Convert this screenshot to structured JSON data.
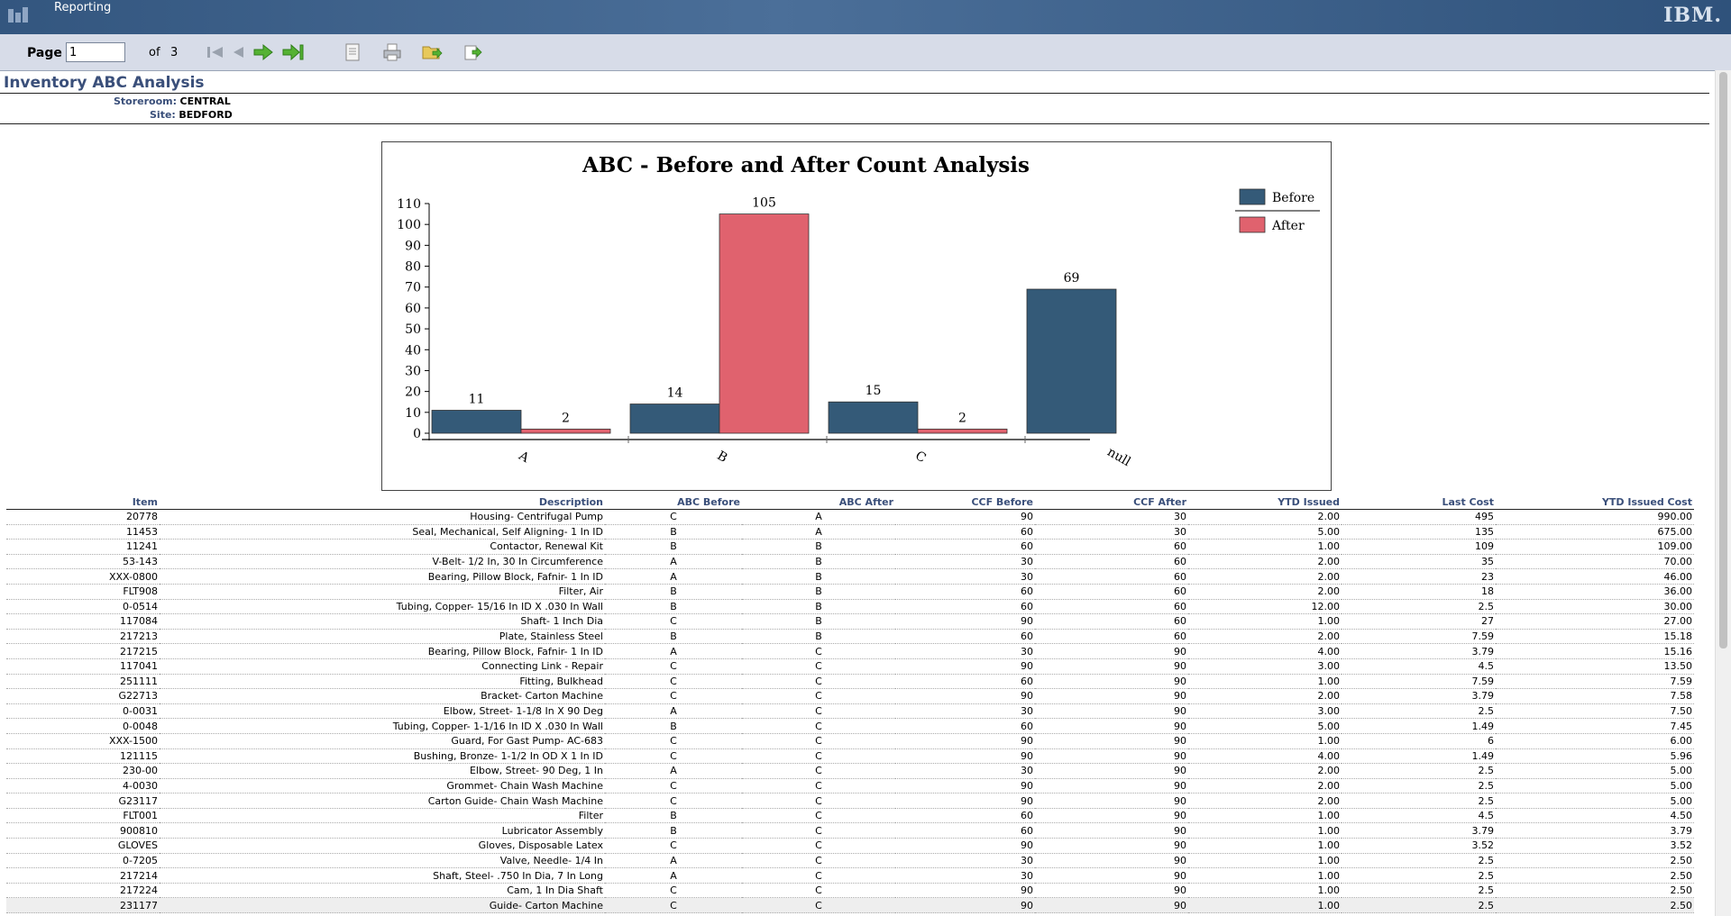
{
  "app": {
    "title": "Reporting",
    "logo": "IBM."
  },
  "toolbar": {
    "page_label": "Page",
    "page_value": "1",
    "of_label": "of",
    "total_pages": "3",
    "icons": [
      "first-page-icon",
      "previous-page-icon",
      "next-page-icon",
      "last-page-icon",
      "view-document-icon",
      "print-icon",
      "export-icon",
      "download-icon"
    ]
  },
  "report": {
    "title": "Inventory ABC Analysis",
    "storeroom_label": "Storeroom:",
    "storeroom_value": "CENTRAL",
    "site_label": "Site:",
    "site_value": "BEDFORD"
  },
  "chart_data": {
    "type": "bar",
    "title": "ABC - Before and After Count Analysis",
    "categories": [
      "A",
      "B",
      "C",
      "null"
    ],
    "series": [
      {
        "name": "Before",
        "values": [
          11,
          14,
          15,
          69
        ],
        "color": "#345a78"
      },
      {
        "name": "After",
        "values": [
          2,
          105,
          2,
          null
        ],
        "color": "#e0626e"
      }
    ],
    "yticks": [
      0,
      10,
      20,
      30,
      40,
      50,
      60,
      70,
      80,
      90,
      100,
      110
    ],
    "ylim": [
      0,
      110
    ],
    "xlabel": "",
    "ylabel": "",
    "legend_position": "top-right",
    "grid": false
  },
  "table": {
    "columns": [
      "Item",
      "Description",
      "ABC Before",
      "ABC After",
      "CCF Before",
      "CCF After",
      "YTD Issued",
      "Last Cost",
      "YTD Issued Cost"
    ],
    "rows": [
      [
        "20778",
        "Housing- Centrifugal Pump",
        "C",
        "A",
        "90",
        "30",
        "2.00",
        "495",
        "990.00"
      ],
      [
        "11453",
        "Seal, Mechanical, Self Aligning- 1 In ID",
        "B",
        "A",
        "60",
        "30",
        "5.00",
        "135",
        "675.00"
      ],
      [
        "11241",
        "Contactor, Renewal Kit",
        "B",
        "B",
        "60",
        "60",
        "1.00",
        "109",
        "109.00"
      ],
      [
        "53-143",
        "V-Belt- 1/2 In, 30 In Circumference",
        "A",
        "B",
        "30",
        "60",
        "2.00",
        "35",
        "70.00"
      ],
      [
        "XXX-0800",
        "Bearing, Pillow Block, Fafnir- 1 In ID",
        "A",
        "B",
        "30",
        "60",
        "2.00",
        "23",
        "46.00"
      ],
      [
        "FLT908",
        "Filter, Air",
        "B",
        "B",
        "60",
        "60",
        "2.00",
        "18",
        "36.00"
      ],
      [
        "0-0514",
        "Tubing, Copper- 15/16 In ID X .030 In Wall",
        "B",
        "B",
        "60",
        "60",
        "12.00",
        "2.5",
        "30.00"
      ],
      [
        "117084",
        "Shaft- 1 Inch Dia",
        "C",
        "B",
        "90",
        "60",
        "1.00",
        "27",
        "27.00"
      ],
      [
        "217213",
        "Plate, Stainless Steel",
        "B",
        "B",
        "60",
        "60",
        "2.00",
        "7.59",
        "15.18"
      ],
      [
        "217215",
        "Bearing, Pillow Block, Fafnir- 1 In ID",
        "A",
        "C",
        "30",
        "90",
        "4.00",
        "3.79",
        "15.16"
      ],
      [
        "117041",
        "Connecting Link - Repair",
        "C",
        "C",
        "90",
        "90",
        "3.00",
        "4.5",
        "13.50"
      ],
      [
        "251111",
        "Fitting, Bulkhead",
        "C",
        "C",
        "60",
        "90",
        "1.00",
        "7.59",
        "7.59"
      ],
      [
        "G22713",
        "Bracket- Carton Machine",
        "C",
        "C",
        "90",
        "90",
        "2.00",
        "3.79",
        "7.58"
      ],
      [
        "0-0031",
        "Elbow, Street- 1-1/8 In X 90 Deg",
        "A",
        "C",
        "30",
        "90",
        "3.00",
        "2.5",
        "7.50"
      ],
      [
        "0-0048",
        "Tubing, Copper- 1-1/16 In ID X .030 In Wall",
        "B",
        "C",
        "60",
        "90",
        "5.00",
        "1.49",
        "7.45"
      ],
      [
        "XXX-1500",
        "Guard, For Gast Pump- AC-683",
        "C",
        "C",
        "90",
        "90",
        "1.00",
        "6",
        "6.00"
      ],
      [
        "121115",
        "Bushing, Bronze- 1-1/2 In OD X 1 In ID",
        "C",
        "C",
        "90",
        "90",
        "4.00",
        "1.49",
        "5.96"
      ],
      [
        "230-00",
        "Elbow, Street- 90 Deg, 1 In",
        "A",
        "C",
        "30",
        "90",
        "2.00",
        "2.5",
        "5.00"
      ],
      [
        "4-0030",
        "Grommet- Chain Wash Machine",
        "C",
        "C",
        "90",
        "90",
        "2.00",
        "2.5",
        "5.00"
      ],
      [
        "G23117",
        "Carton Guide- Chain Wash Machine",
        "C",
        "C",
        "90",
        "90",
        "2.00",
        "2.5",
        "5.00"
      ],
      [
        "FLT001",
        "Filter",
        "B",
        "C",
        "60",
        "90",
        "1.00",
        "4.5",
        "4.50"
      ],
      [
        "900810",
        "Lubricator Assembly",
        "B",
        "C",
        "60",
        "90",
        "1.00",
        "3.79",
        "3.79"
      ],
      [
        "GLOVES",
        "Gloves, Disposable Latex",
        "C",
        "C",
        "90",
        "90",
        "1.00",
        "3.52",
        "3.52"
      ],
      [
        "0-7205",
        "Valve, Needle- 1/4 In",
        "A",
        "C",
        "30",
        "90",
        "1.00",
        "2.5",
        "2.50"
      ],
      [
        "217214",
        "Shaft, Steel- .750 In Dia, 7 In Long",
        "A",
        "C",
        "30",
        "90",
        "1.00",
        "2.5",
        "2.50"
      ],
      [
        "217224",
        "Cam, 1 In Dia Shaft",
        "C",
        "C",
        "90",
        "90",
        "1.00",
        "2.5",
        "2.50"
      ],
      [
        "231177",
        "Guide- Carton Machine",
        "C",
        "C",
        "90",
        "90",
        "1.00",
        "2.5",
        "2.50"
      ]
    ]
  }
}
